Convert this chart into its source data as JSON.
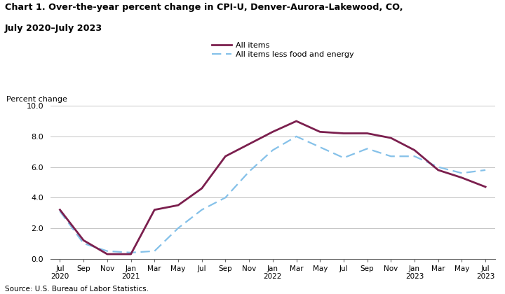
{
  "title_line1": "Chart 1. Over-the-year percent change in CPI-U, Denver-Aurora-Lakewood, CO,",
  "title_line2": "July 2020–July 2023",
  "ylabel": "Percent change",
  "source": "Source: U.S. Bureau of Labor Statistics.",
  "ylim": [
    0.0,
    10.0
  ],
  "yticks": [
    0.0,
    2.0,
    4.0,
    6.0,
    8.0,
    10.0
  ],
  "x_labels": [
    "Jul\n2020",
    "Sep",
    "Nov",
    "Jan\n2021",
    "Mar",
    "May",
    "Jul",
    "Sep",
    "Nov",
    "Jan\n2022",
    "Mar",
    "May",
    "Jul",
    "Sep",
    "Nov",
    "Jan\n2023",
    "Mar",
    "May",
    "Jul\n2023"
  ],
  "all_items": [
    3.2,
    1.2,
    0.3,
    0.3,
    3.2,
    3.5,
    4.6,
    6.7,
    7.5,
    8.3,
    9.0,
    8.3,
    8.2,
    8.2,
    7.9,
    7.1,
    5.8,
    5.3,
    4.7
  ],
  "all_items_less": [
    3.1,
    1.0,
    0.5,
    0.4,
    0.5,
    2.0,
    3.2,
    4.0,
    5.7,
    7.1,
    8.0,
    7.3,
    6.6,
    7.2,
    6.7,
    6.7,
    6.0,
    5.6,
    5.8
  ],
  "all_items_color": "#7B1F4E",
  "all_items_less_color": "#85C1E9",
  "all_items_lw": 2.0,
  "all_items_less_lw": 1.6,
  "legend_all_items": "All items",
  "legend_all_items_less": "All items less food and energy",
  "bg_color": "#FFFFFF",
  "grid_color": "#BBBBBB"
}
